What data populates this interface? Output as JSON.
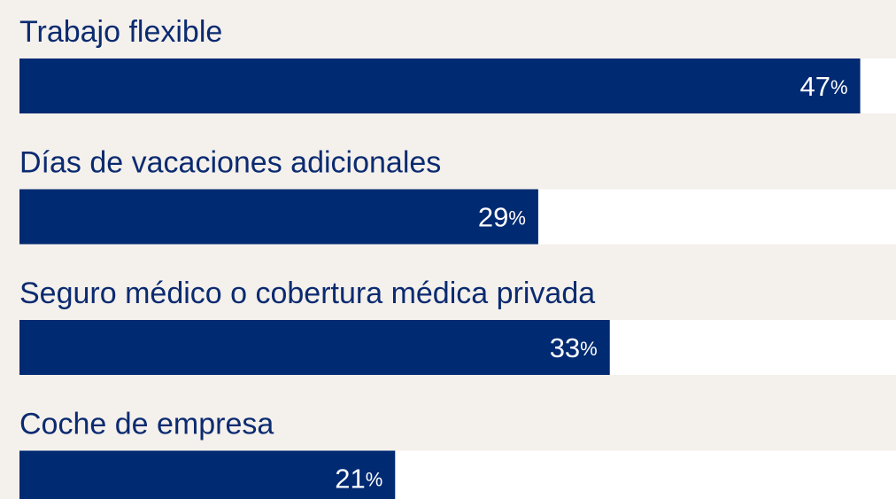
{
  "chart_data": {
    "type": "bar",
    "categories": [
      "Trabajo flexible",
      "Días de vacaciones adicionales",
      "Seguro médico o cobertura médica privada",
      "Coche de empresa"
    ],
    "values": [
      47,
      29,
      33,
      21
    ],
    "value_labels": [
      "47%",
      "29%",
      "33%",
      "21%"
    ],
    "color": "#002a72",
    "xlim": [
      0,
      49
    ]
  }
}
